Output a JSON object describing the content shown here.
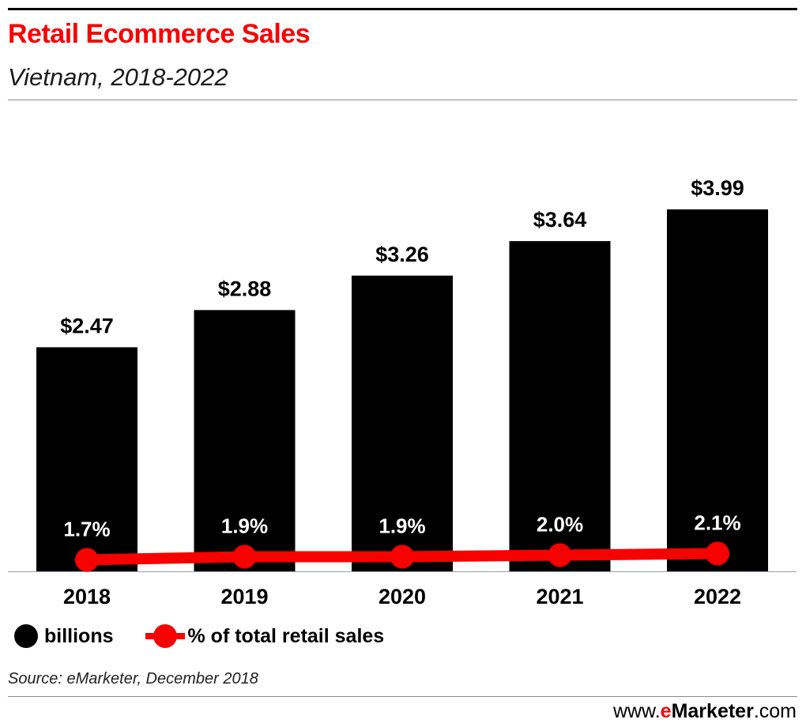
{
  "header": {
    "title": "Retail Ecommerce Sales",
    "subtitle": "Vietnam, 2018-2022"
  },
  "colors": {
    "bar": "#000000",
    "line": "#f70000",
    "title": "#f70000"
  },
  "chart_data": {
    "type": "bar",
    "categories": [
      "2018",
      "2019",
      "2020",
      "2021",
      "2022"
    ],
    "series": [
      {
        "name": "billions",
        "type": "bar",
        "values": [
          2.47,
          2.88,
          3.26,
          3.64,
          3.99
        ],
        "labels": [
          "$2.47",
          "$2.88",
          "$3.26",
          "$3.64",
          "$3.99"
        ]
      },
      {
        "name": "% of total retail sales",
        "type": "line",
        "values": [
          1.7,
          1.9,
          1.9,
          2.0,
          2.1
        ],
        "labels": [
          "1.7%",
          "1.9%",
          "1.9%",
          "2.0%",
          "2.1%"
        ]
      }
    ],
    "grid": false,
    "legend_position": "bottom-left"
  },
  "legend": {
    "bars_label": "billions",
    "line_label": "% of total retail sales"
  },
  "footer": {
    "source": "Source: eMarketer, December 2018",
    "website_prefix": "www.",
    "website_brand_e": "e",
    "website_brand_rest": "Marketer",
    "website_suffix": ".com"
  }
}
